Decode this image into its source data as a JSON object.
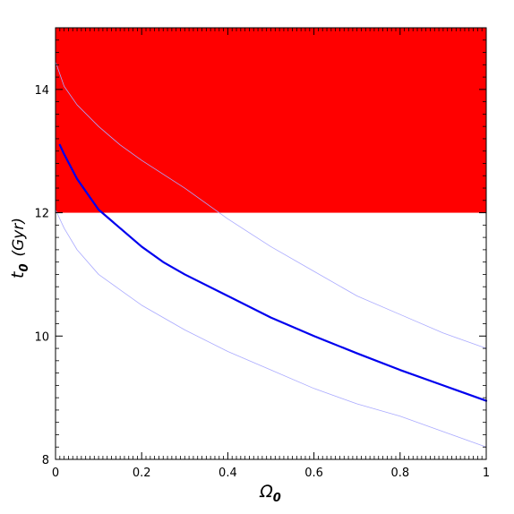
{
  "chart_data": {
    "type": "line",
    "title": "",
    "xlabel": "Ω",
    "xlabel_sub": "0",
    "ylabel": "t",
    "ylabel_sub": "0",
    "ylabel_unit": "(Gyr)",
    "xlim": [
      0,
      1
    ],
    "ylim": [
      8,
      15
    ],
    "xticks": [
      0,
      0.2,
      0.4,
      0.6,
      0.8,
      1
    ],
    "xtick_labels": [
      "0",
      "0.2",
      "0.4",
      "0.6",
      "0.8",
      "1"
    ],
    "yticks": [
      8,
      10,
      12,
      14
    ],
    "ytick_labels": [
      "8",
      "10",
      "12",
      "14"
    ],
    "grid": false,
    "shaded_region": {
      "color": "#ff0000",
      "y_from": 12,
      "y_to": 15
    },
    "series": [
      {
        "color": "#aaaaff",
        "width": 0.8,
        "x": [
          0.0,
          0.02,
          0.05,
          0.1,
          0.15,
          0.2,
          0.3,
          0.4,
          0.5,
          0.6,
          0.7,
          0.8,
          0.9,
          1.0
        ],
        "y": [
          14.45,
          14.05,
          13.75,
          13.4,
          13.1,
          12.85,
          12.4,
          11.9,
          11.45,
          11.05,
          10.65,
          10.35,
          10.05,
          9.8
        ]
      },
      {
        "color": "#0000ee",
        "width": 2.2,
        "x": [
          0.01,
          0.02,
          0.05,
          0.1,
          0.15,
          0.2,
          0.25,
          0.3,
          0.4,
          0.5,
          0.6,
          0.7,
          0.8,
          0.9,
          1.0
        ],
        "y": [
          13.1,
          12.95,
          12.55,
          12.05,
          11.75,
          11.45,
          11.2,
          11.0,
          10.65,
          10.3,
          10.0,
          9.72,
          9.45,
          9.2,
          8.95
        ]
      },
      {
        "color": "#aaaaff",
        "width": 0.8,
        "x": [
          0.0,
          0.02,
          0.05,
          0.1,
          0.15,
          0.2,
          0.3,
          0.4,
          0.5,
          0.6,
          0.7,
          0.8,
          0.9,
          1.0
        ],
        "y": [
          12.05,
          11.75,
          11.4,
          11.0,
          10.75,
          10.5,
          10.1,
          9.75,
          9.45,
          9.15,
          8.9,
          8.7,
          8.45,
          8.2
        ]
      }
    ]
  }
}
